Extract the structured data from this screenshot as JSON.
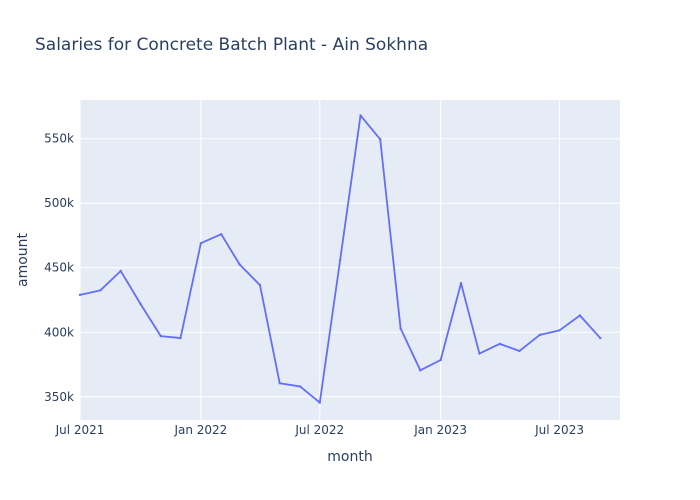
{
  "colors": {
    "paper": "#ffffff",
    "plot_background": "#e5ecf6",
    "gridline": "#ffffff",
    "text": "#2a3f5f",
    "line": "#636efa"
  },
  "chart_data": {
    "type": "line",
    "title": "Salaries for Concrete Batch Plant - Ain Sokhna",
    "xlabel": "month",
    "ylabel": "amount",
    "xlim": [
      "2021-07-01",
      "2023-10-01"
    ],
    "ylim": [
      332000,
      580000
    ],
    "grid": true,
    "legend": "none",
    "x_ticks": [
      {
        "value": "2021-07-01",
        "label": "Jul 2021"
      },
      {
        "value": "2022-01-01",
        "label": "Jan 2022"
      },
      {
        "value": "2022-07-01",
        "label": "Jul 2022"
      },
      {
        "value": "2023-01-01",
        "label": "Jan 2023"
      },
      {
        "value": "2023-07-01",
        "label": "Jul 2023"
      }
    ],
    "y_ticks": [
      {
        "value": 350000,
        "label": "350k"
      },
      {
        "value": 400000,
        "label": "400k"
      },
      {
        "value": 450000,
        "label": "450k"
      },
      {
        "value": 500000,
        "label": "500k"
      },
      {
        "value": 550000,
        "label": "550k"
      }
    ],
    "series": [
      {
        "color": "#636efa",
        "x": [
          "2021-07-01",
          "2021-08-01",
          "2021-09-01",
          "2021-10-01",
          "2021-11-01",
          "2021-12-01",
          "2022-01-01",
          "2022-02-01",
          "2022-03-01",
          "2022-04-01",
          "2022-05-01",
          "2022-06-01",
          "2022-07-01",
          "2022-08-01",
          "2022-09-01",
          "2022-10-01",
          "2022-11-01",
          "2022-12-01",
          "2023-01-01",
          "2023-02-01",
          "2023-03-01",
          "2023-04-01",
          "2023-05-01",
          "2023-06-01",
          "2023-07-01",
          "2023-08-01",
          "2023-09-01"
        ],
        "y": [
          429000,
          432500,
          447500,
          422000,
          397000,
          395500,
          469000,
          476000,
          452500,
          436500,
          360500,
          358000,
          345500,
          456000,
          568000,
          549500,
          403000,
          370500,
          378500,
          438000,
          383500,
          391000,
          385500,
          398000,
          401500,
          413000,
          395500
        ]
      }
    ]
  }
}
